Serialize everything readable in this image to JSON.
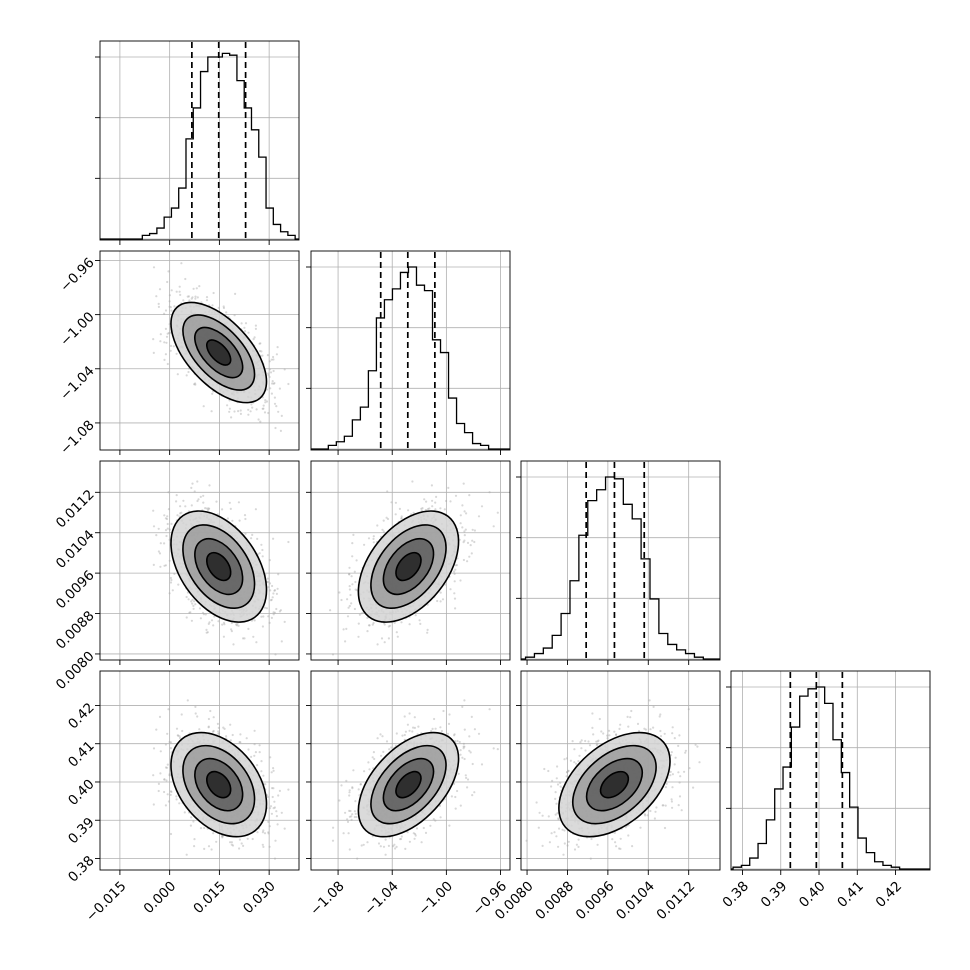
{
  "chart_data": {
    "type": "corner",
    "title": "",
    "parameters": [
      {
        "mean": 0.0148,
        "std": 0.0072,
        "lim": [
          -0.021,
          0.039
        ],
        "ticks": [
          -0.015,
          0.0,
          0.015,
          0.03
        ],
        "tick_labels": [
          "−0.015",
          "0.000",
          "0.015",
          "0.030"
        ],
        "quantiles": [
          0.0067,
          0.0148,
          0.0229
        ],
        "hist": [
          0.02,
          0.03,
          0.06,
          0.12,
          0.17,
          0.28,
          0.55,
          0.72,
          0.92,
          1.0,
          1.0,
          1.02,
          1.01,
          0.87,
          0.72,
          0.6,
          0.45,
          0.17,
          0.08,
          0.04,
          0.02
        ]
      },
      {
        "mean": -1.028,
        "std": 0.0185,
        "lim": [
          -1.1,
          -0.953
        ],
        "ticks": [
          -1.08,
          -1.04,
          -1.0,
          -0.96
        ],
        "tick_labels": [
          "−1.08",
          "−1.04",
          "−1.00",
          "−0.96"
        ],
        "quantiles": [
          -1.0485,
          -1.0285,
          -1.0085
        ],
        "hist": [
          0.02,
          0.04,
          0.07,
          0.16,
          0.23,
          0.43,
          0.72,
          0.82,
          0.88,
          0.97,
          1.0,
          0.9,
          0.87,
          0.6,
          0.53,
          0.28,
          0.14,
          0.09,
          0.03,
          0.02
        ]
      },
      {
        "mean": 0.00973,
        "std": 0.00055,
        "lim": [
          0.00788,
          0.01182
        ],
        "ticks": [
          0.008,
          0.0088,
          0.0096,
          0.0104,
          0.0112
        ],
        "tick_labels": [
          "0.0080",
          "0.0088",
          "0.0096",
          "0.0104",
          "0.0112"
        ],
        "quantiles": [
          0.00917,
          0.00973,
          0.01032
        ],
        "hist": [
          0.01,
          0.03,
          0.06,
          0.13,
          0.25,
          0.43,
          0.68,
          0.87,
          0.93,
          1.0,
          0.99,
          0.85,
          0.77,
          0.55,
          0.33,
          0.14,
          0.08,
          0.05,
          0.03,
          0.01
        ]
      },
      {
        "mean": 0.3993,
        "std": 0.0068,
        "lim": [
          0.377,
          0.429
        ],
        "ticks": [
          0.38,
          0.39,
          0.4,
          0.41,
          0.42
        ],
        "tick_labels": [
          "0.38",
          "0.39",
          "0.40",
          "0.41",
          "0.42"
        ],
        "quantiles": [
          0.3925,
          0.3993,
          0.4061
        ],
        "hist": [
          0.01,
          0.02,
          0.06,
          0.14,
          0.27,
          0.44,
          0.56,
          0.78,
          0.95,
          0.99,
          1.0,
          0.91,
          0.71,
          0.53,
          0.34,
          0.17,
          0.09,
          0.04,
          0.02,
          0.01
        ]
      }
    ],
    "correlations": [
      [
        1.0,
        -0.58,
        -0.42,
        -0.37
      ],
      [
        -0.58,
        1.0,
        0.45,
        0.5
      ],
      [
        -0.42,
        0.45,
        1.0,
        0.45
      ],
      [
        -0.37,
        0.5,
        0.45,
        1.0
      ]
    ],
    "contour_levels_sigma": [
      0.5,
      1.0,
      1.5,
      2.0
    ],
    "quantile_line_style": "dashed",
    "grid": true,
    "histogram_style": "step"
  }
}
